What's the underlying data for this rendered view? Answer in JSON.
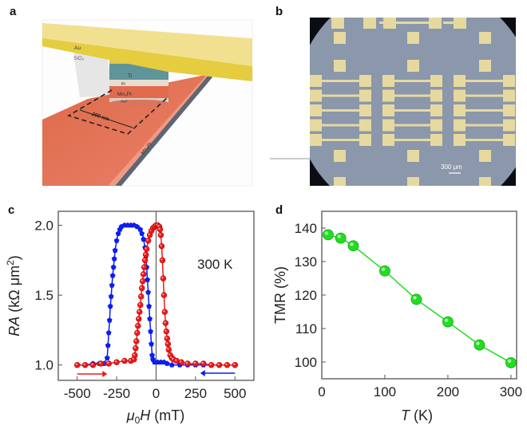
{
  "panels": {
    "a": {
      "label": "a",
      "layers": {
        "au": "Au",
        "sio2": "SiO₂",
        "ti": "Ti",
        "pt": "Pt",
        "mn3pt_pillar": "Mn₃Pt",
        "mgo": "MgO"
      },
      "dimension": "200 nm",
      "bottom_layer_top": "Mn₃Pt",
      "bottom_layer_side": "Mn₃Pt",
      "colors": {
        "au": "#e6cf45",
        "ti": "#5f9499",
        "mn3pt": "#e8674a",
        "base": "#5d6674"
      }
    },
    "b": {
      "label": "b",
      "scale_bar": "300 μm",
      "colors": {
        "pad": "#e6d9a0",
        "field": "#8b97aa"
      }
    },
    "c": {
      "label": "c"
    },
    "d": {
      "label": "d"
    }
  },
  "chart_data": [
    {
      "type": "scatter",
      "panel": "c",
      "xlabel_sym": "μ",
      "xlabel_sub": "0",
      "xlabel_var": "H",
      "xlabel_unit": " (mT)",
      "ylabel_var": "RA",
      "ylabel_unit": " (kΩ μm",
      "ylabel_sup": "2",
      "ylabel_close": ")",
      "annotation": "300 K",
      "xlim": [
        -620,
        620
      ],
      "ylim": [
        0.89,
        2.1
      ],
      "xticks": [
        -500,
        -250,
        0,
        250,
        500
      ],
      "xtick_labels": [
        "-500",
        "-250",
        "0",
        "250",
        "500"
      ],
      "yticks": [
        1.0,
        1.5,
        2.0
      ],
      "ytick_labels": [
        "1.0",
        "1.5",
        "2.0"
      ],
      "grid": false,
      "series": [
        {
          "color": "#0b1df0",
          "marker": "pentagon",
          "sweep": "decreasing",
          "x": [
            500,
            450,
            400,
            350,
            300,
            250,
            200,
            150,
            100,
            70,
            50,
            30,
            10,
            -10,
            -20,
            -25,
            -30,
            -35,
            -40,
            -45,
            -50,
            -55,
            -60,
            -65,
            -70,
            -80,
            -90,
            -100,
            -120,
            -140,
            -160,
            -180,
            -200,
            -220,
            -230,
            -240,
            -250,
            -260,
            -265,
            -270,
            -275,
            -280,
            -285,
            -290,
            -295,
            -300,
            -305,
            -310,
            -330,
            -360,
            -400,
            -450,
            -500
          ],
          "y": [
            1.0,
            1.0,
            1.0,
            1.0,
            1.0,
            1.0,
            1.0,
            1.0,
            1.0,
            1.01,
            1.02,
            1.02,
            1.02,
            1.02,
            1.04,
            1.07,
            1.15,
            1.24,
            1.33,
            1.42,
            1.52,
            1.61,
            1.7,
            1.78,
            1.84,
            1.9,
            1.94,
            1.97,
            1.99,
            2.0,
            2.0,
            2.0,
            2.0,
            1.99,
            1.97,
            1.94,
            1.89,
            1.82,
            1.76,
            1.7,
            1.64,
            1.57,
            1.49,
            1.42,
            1.32,
            1.23,
            1.14,
            1.05,
            1.01,
            1.01,
            1.01,
            1.0,
            1.0
          ]
        },
        {
          "color": "#ee1a1a",
          "marker": "circle",
          "sweep": "increasing",
          "x": [
            -500,
            -450,
            -400,
            -350,
            -300,
            -250,
            -200,
            -160,
            -140,
            -135,
            -130,
            -125,
            -120,
            -115,
            -110,
            -105,
            -100,
            -95,
            -90,
            -85,
            -80,
            -75,
            -70,
            -65,
            -60,
            -50,
            -40,
            -30,
            -20,
            -10,
            0,
            10,
            20,
            25,
            30,
            35,
            40,
            45,
            50,
            55,
            60,
            65,
            70,
            75,
            80,
            90,
            100,
            110,
            130,
            160,
            200,
            250,
            300,
            350,
            400,
            450,
            500
          ],
          "y": [
            1.0,
            1.0,
            1.0,
            1.01,
            1.01,
            1.02,
            1.03,
            1.03,
            1.04,
            1.07,
            1.12,
            1.17,
            1.23,
            1.28,
            1.33,
            1.38,
            1.43,
            1.49,
            1.55,
            1.6,
            1.65,
            1.7,
            1.75,
            1.79,
            1.83,
            1.89,
            1.93,
            1.96,
            1.98,
            1.99,
            2.0,
            2.0,
            1.99,
            1.97,
            1.93,
            1.85,
            1.75,
            1.62,
            1.5,
            1.38,
            1.3,
            1.24,
            1.19,
            1.15,
            1.11,
            1.07,
            1.05,
            1.04,
            1.03,
            1.02,
            1.01,
            1.01,
            1.01,
            1.0,
            1.0,
            1.0,
            1.0
          ]
        }
      ]
    },
    {
      "type": "line",
      "panel": "d",
      "xlabel_var": "T",
      "xlabel_unit": " (K)",
      "ylabel": "TMR (%)",
      "xlim": [
        0,
        309
      ],
      "ylim": [
        95,
        145
      ],
      "xticks": [
        0,
        100,
        200,
        300
      ],
      "xtick_labels": [
        "0",
        "100",
        "200",
        "300"
      ],
      "yticks": [
        100,
        110,
        120,
        130,
        140
      ],
      "ytick_labels": [
        "100",
        "110",
        "120",
        "130",
        "140"
      ],
      "grid": false,
      "series": [
        {
          "color": "#22dd22",
          "marker": "sphere",
          "x": [
            10,
            30,
            50,
            100,
            150,
            200,
            250,
            300
          ],
          "y": [
            138,
            137,
            134.7,
            127.2,
            118.7,
            112,
            105.1,
            99.8
          ]
        }
      ]
    }
  ]
}
